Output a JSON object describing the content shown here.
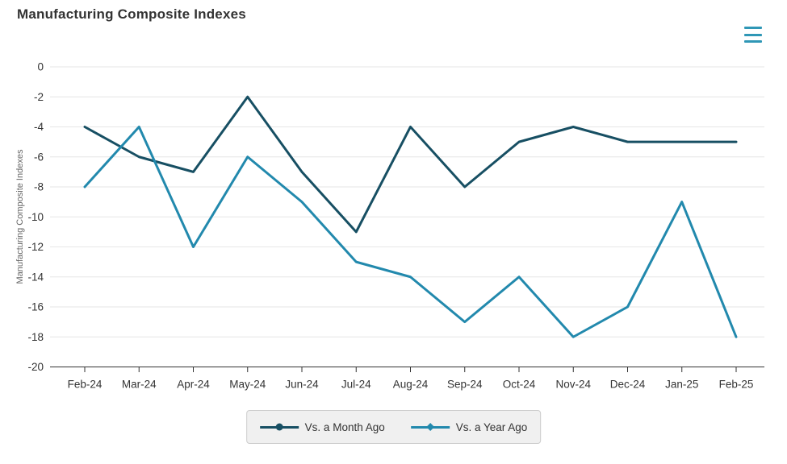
{
  "title": "Manufacturing Composite Indexes",
  "colors": {
    "month_ago": "#174f63",
    "year_ago": "#2289ad",
    "gridline": "#e6e6e6",
    "axis_line": "#333333",
    "tick_label": "#333333",
    "axis_title": "#666666",
    "menu_icon": "#2f97b6",
    "legend_bg": "#f0f0f0",
    "legend_border": "#cccccc"
  },
  "chart_data": {
    "type": "line",
    "title": "Manufacturing Composite Indexes",
    "categories": [
      "Feb-24",
      "Mar-24",
      "Apr-24",
      "May-24",
      "Jun-24",
      "Jul-24",
      "Aug-24",
      "Sep-24",
      "Oct-24",
      "Nov-24",
      "Dec-24",
      "Jan-25",
      "Feb-25"
    ],
    "series": [
      {
        "name": "Vs. a Month Ago",
        "marker": "circle",
        "color": "#174f63",
        "values": [
          -4,
          -6,
          -7,
          -2,
          -7,
          -11,
          -4,
          -8,
          -5,
          -4,
          -5,
          -5,
          -5
        ]
      },
      {
        "name": "Vs. a Year Ago",
        "marker": "diamond",
        "color": "#2289ad",
        "values": [
          -8,
          -4,
          -12,
          -6,
          -9,
          -13,
          -14,
          -17,
          -14,
          -18,
          -16,
          -9,
          -18
        ]
      }
    ],
    "xlabel": "",
    "ylabel": "Manufacturing Composite Indexes",
    "ylim": [
      -20,
      0
    ],
    "yticks": [
      0,
      -2,
      -4,
      -6,
      -8,
      -10,
      -12,
      -14,
      -16,
      -18,
      -20
    ],
    "grid": "horizontal",
    "legend_position": "bottom"
  }
}
